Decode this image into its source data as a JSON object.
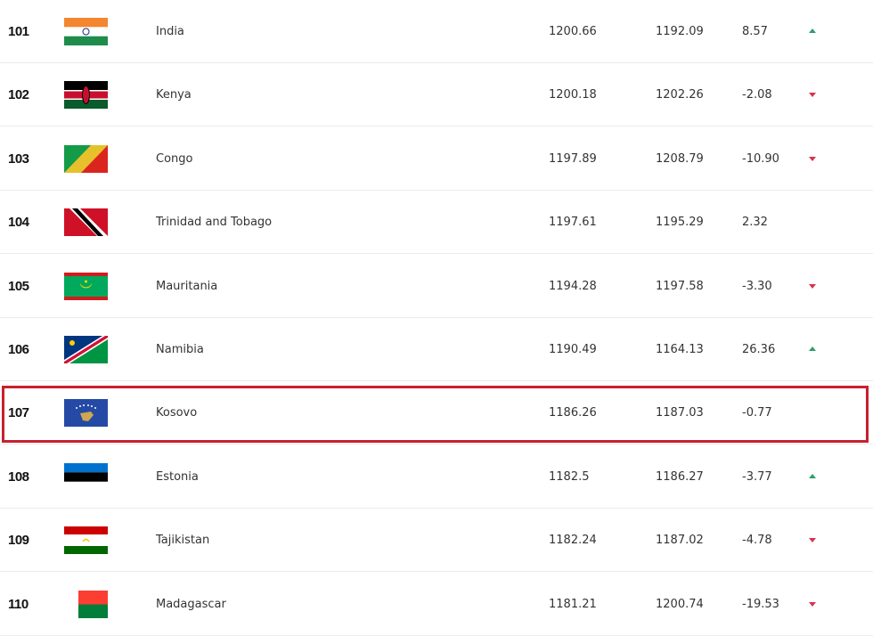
{
  "colors": {
    "up": "#2e9e6b",
    "down": "#d9324a",
    "highlight": "#c8202f"
  },
  "rows": [
    {
      "rank": "101",
      "country": "India",
      "flag": "india-flag",
      "points": "1200.66",
      "previous_points": "1192.09",
      "change": "8.57",
      "trend": "up"
    },
    {
      "rank": "102",
      "country": "Kenya",
      "flag": "kenya-flag",
      "points": "1200.18",
      "previous_points": "1202.26",
      "change": "-2.08",
      "trend": "down"
    },
    {
      "rank": "103",
      "country": "Congo",
      "flag": "congo-flag",
      "points": "1197.89",
      "previous_points": "1208.79",
      "change": "-10.90",
      "trend": "down"
    },
    {
      "rank": "104",
      "country": "Trinidad and Tobago",
      "flag": "trinidad-and-tobago-flag",
      "points": "1197.61",
      "previous_points": "1195.29",
      "change": "2.32",
      "trend": "none"
    },
    {
      "rank": "105",
      "country": "Mauritania",
      "flag": "mauritania-flag",
      "points": "1194.28",
      "previous_points": "1197.58",
      "change": "-3.30",
      "trend": "down"
    },
    {
      "rank": "106",
      "country": "Namibia",
      "flag": "namibia-flag",
      "points": "1190.49",
      "previous_points": "1164.13",
      "change": "26.36",
      "trend": "up"
    },
    {
      "rank": "107",
      "country": "Kosovo",
      "flag": "kosovo-flag",
      "points": "1186.26",
      "previous_points": "1187.03",
      "change": "-0.77",
      "trend": "none",
      "highlighted": true
    },
    {
      "rank": "108",
      "country": "Estonia",
      "flag": "estonia-flag",
      "points": "1182.5",
      "previous_points": "1186.27",
      "change": "-3.77",
      "trend": "up"
    },
    {
      "rank": "109",
      "country": "Tajikistan",
      "flag": "tajikistan-flag",
      "points": "1182.24",
      "previous_points": "1187.02",
      "change": "-4.78",
      "trend": "down"
    },
    {
      "rank": "110",
      "country": "Madagascar",
      "flag": "madagascar-flag",
      "points": "1181.21",
      "previous_points": "1200.74",
      "change": "-19.53",
      "trend": "down"
    }
  ]
}
